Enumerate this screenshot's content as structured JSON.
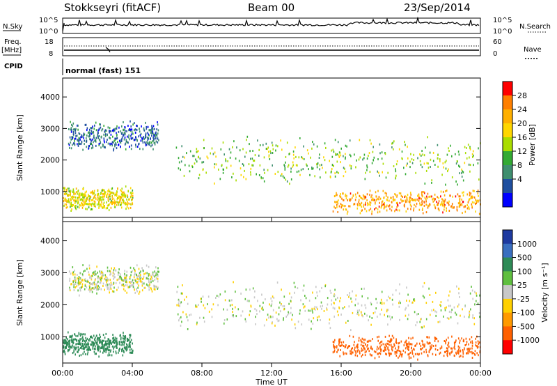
{
  "header": {
    "radar": "Stokkseyri (fitACF)",
    "beam": "Beam 00",
    "date": "23/Sep/2014"
  },
  "nsky_panel": {
    "left_label": "N.Sky",
    "right_label": "N.Search",
    "left_ticks": [
      "10^5",
      "10^0"
    ],
    "right_ticks": [
      "10^5",
      "10^0"
    ]
  },
  "freq_panel": {
    "left_label_1": "Freq.",
    "left_label_2": "[MHz]",
    "right_label": "Nave",
    "left_ticks": [
      "18",
      "8"
    ],
    "right_ticks": [
      "60",
      "0"
    ]
  },
  "cpid": {
    "label": "CPID",
    "value": "normal (fast) 151"
  },
  "x_axis": {
    "label": "Time UT",
    "ticks": [
      "00:00",
      "04:00",
      "08:00",
      "12:00",
      "16:00",
      "20:00",
      "00:00"
    ]
  },
  "power_colorbar": {
    "label": "Power [dB]",
    "ticks": [
      "28",
      "24",
      "20",
      "16",
      "12",
      "8",
      "4"
    ],
    "colors": [
      "#ff0000",
      "#ff7f00",
      "#ffb000",
      "#ffd700",
      "#aadd00",
      "#33aa33",
      "#3f8f6f",
      "#1f4f9f",
      "#0000ff"
    ]
  },
  "velocity_colorbar": {
    "label": "Velocity [m s⁻¹]",
    "ticks": [
      "1000",
      "500",
      "100",
      "25",
      "-25",
      "-100",
      "-500",
      "-1000"
    ],
    "colors": [
      "#1e3aa0",
      "#3a6fc0",
      "#2e8b57",
      "#5fbf3f",
      "#c8c8c8",
      "#ffd000",
      "#ff9a00",
      "#ff6000",
      "#ff0000"
    ]
  },
  "chart_data": [
    {
      "type": "heatmap",
      "title": "Power",
      "xlabel": "Time UT",
      "ylabel": "Slant Range [km]",
      "xlim_hours": [
        0,
        24
      ],
      "ylim_km": [
        180,
        4600
      ],
      "yticks": [
        "1000",
        "2000",
        "3000",
        "4000"
      ],
      "colorbar_range_db": [
        0,
        32
      ],
      "regions": [
        {
          "band": "far arc",
          "t_start": 0.3,
          "t_end": 5.5,
          "range_start_km": 2300,
          "range_end_km": 3300,
          "power_db": 8
        },
        {
          "band": "near echoes",
          "t_start": 0.0,
          "t_end": 4.0,
          "range_start_km": 400,
          "range_end_km": 1200,
          "power_db": 20
        },
        {
          "band": "main arc",
          "t_start": 6.5,
          "t_end": 24.0,
          "range_start_km": 1200,
          "range_end_km": 2800,
          "power_db": 16
        },
        {
          "band": "evening E-region",
          "t_start": 15.5,
          "t_end": 24.0,
          "range_start_km": 300,
          "range_end_km": 1100,
          "power_db": 26
        }
      ]
    },
    {
      "type": "heatmap",
      "title": "Velocity",
      "xlabel": "Time UT",
      "ylabel": "Slant Range [km]",
      "xlim_hours": [
        0,
        24
      ],
      "ylim_km": [
        180,
        4600
      ],
      "yticks": [
        "1000",
        "2000",
        "3000",
        "4000"
      ],
      "regions": [
        {
          "band": "far arc",
          "t_start": 0.3,
          "t_end": 5.5,
          "range_start_km": 2300,
          "range_end_km": 3300,
          "velocity_ms": 0
        },
        {
          "band": "near echoes",
          "t_start": 0.0,
          "t_end": 4.0,
          "range_start_km": 400,
          "range_end_km": 1200,
          "velocity_ms": 150
        },
        {
          "band": "main arc",
          "t_start": 6.5,
          "t_end": 24.0,
          "range_start_km": 1200,
          "range_end_km": 2800,
          "velocity_ms": 0
        },
        {
          "band": "evening E-region",
          "t_start": 15.5,
          "t_end": 24.0,
          "range_start_km": 300,
          "range_end_km": 1100,
          "velocity_ms": -400
        }
      ]
    }
  ]
}
